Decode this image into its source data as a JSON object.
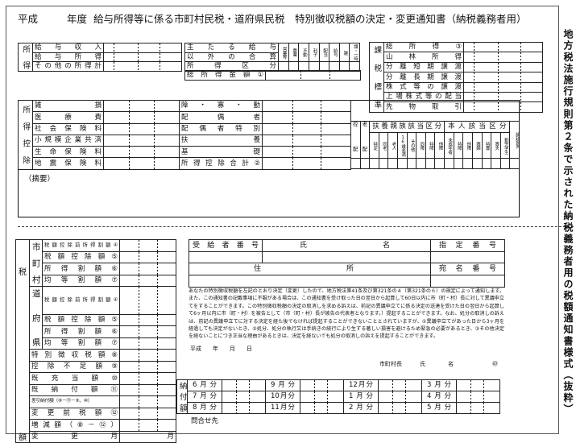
{
  "title": {
    "era": "平成",
    "year_label": "年度",
    "main": "給与所得等に係る市町村民税・道府県民税　特別徴収税額の決定・変更通知書（納税義務者用）"
  },
  "income": {
    "group": "所得",
    "rows": [
      "給与収入",
      "給与所得",
      "その他の所得計"
    ],
    "class_labels": [
      "主たる給与",
      "以外の合算",
      "所得区分"
    ],
    "class_cols": [
      "営業等",
      "農業",
      "不動",
      "利子",
      "配当",
      "給与",
      "雑",
      "譲・一時"
    ],
    "total_label": "総所得金額①"
  },
  "taxbase": {
    "group": "課税標準",
    "rows": [
      "総所得③",
      "山林所得",
      "分離短期譲渡",
      "分離長期譲渡",
      "株式等の譲渡",
      "上場株式等の配当",
      "先物取引"
    ]
  },
  "deductions": {
    "group": "所得控除",
    "left": [
      "雑損",
      "医療費",
      "社会保険料",
      "小規模企業共済",
      "生命保険料",
      "地震保険料"
    ],
    "right": [
      "障・寡・勤",
      "配偶者",
      "配偶者特別",
      "扶養",
      "基礎",
      "所得控除合計②"
    ]
  },
  "status": {
    "spouse_cols": [
      {
        "top": "控",
        "bottom": "配"
      },
      {
        "top": "老",
        "bottom": "配"
      }
    ],
    "dependents_header": "扶養親族該当区分",
    "dependents": [
      "特定",
      "同老",
      "老人",
      "16歳未満",
      "その他",
      "同障",
      "特障",
      "他障"
    ],
    "self_header": "本人該当区分",
    "self": [
      "未成年者",
      "特障",
      "他障",
      "寡婦",
      "特寡",
      "寡夫",
      "勤労学生"
    ],
    "carryover": "繰越損失"
  },
  "remarks_label": "（摘要）",
  "tax": {
    "group_top": "税",
    "group_bottom": "額",
    "city_label": "市町村",
    "pref_label": "道府県",
    "city_rows": [
      "税額控除前所得割額④",
      "税額控除額⑤",
      "所得割額⑥",
      "均等割額⑦"
    ],
    "pref_rows": [
      "税額控除前所得割額④",
      "税額控除額⑤",
      "所得割額⑥",
      "均等割額⑦"
    ],
    "rows": [
      "特別徴収税額⑧",
      "控除不足額⑨",
      "既充当額⑩",
      "既納付額⑪",
      "差引納付額（⑧－⑪－⑨、⑩）",
      "変更前税額⑫",
      "増減額（⑧－⑫）",
      "変更月"
    ],
    "month_unit": "月"
  },
  "recipient": {
    "number_label": "受給者番号",
    "name_label": [
      "氏",
      "名"
    ],
    "designation_label": "指定番号",
    "address_label": [
      "住",
      "所"
    ],
    "address_number_label": "宛名番号"
  },
  "notice": "あなたの特別徴収税額を左記のとおり決定（変更）したので、地方税法第41条及び第321条の４（第321条の６）の規定によって通知します。また、この通知書の記載事項に不服がある場合は、この通知書を受け取った日の翌日から起算して60日以内に市（町・村）長に対して異議申立てをすることができます。この特別徴収税額の決定の取消しを求める訴えは、前記の異議申立てに係る決定の送達を受けた日の翌日から起算して6ヶ月以内に市（町・村）を被告として（市（町・村）長が被告の代表者となります。）提起することができます。なお、処分の取消しの訴えは、前記の異議申立てに対する決定を経た後でなければ提起することができないこととされていますが、①異議申立てがあった日から3ヶ月を経過しても決定がないとき、②処分、処分の執行又は手続きの続行により生ずる著しい損害を避けるため緊急の必要があるとき、③その他決定を経ないことにつき正当な理由があるときは、決定を経ないでも処分の取消しの訴えを提起することができます。",
  "date": {
    "era": "平成",
    "year": "年",
    "month": "月",
    "day": "日"
  },
  "signature": {
    "title": "市町村長",
    "name": [
      "氏",
      "名"
    ],
    "seal": "㊞"
  },
  "payments": {
    "label": "納付額",
    "months": [
      [
        "6月分",
        "7月分",
        "8月分"
      ],
      [
        "9月分",
        "10月分",
        "11月分"
      ],
      [
        "12月分",
        "1月分",
        "2月分"
      ],
      [
        "3月分",
        "4月分",
        "5月分"
      ]
    ]
  },
  "contact": "問合せ先",
  "side_note": "地方税法施行規則第２条で示された納税義務者用の税額通知書様式（抜粋）"
}
